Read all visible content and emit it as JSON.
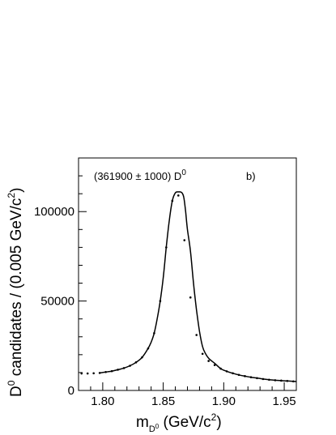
{
  "chart_data": {
    "type": "line",
    "annotation": {
      "count_text": "(361900 ± 1000) D",
      "count_sup": "0",
      "panel_label": "b)"
    },
    "xlabel": {
      "main": "m",
      "sub1": "D",
      "sub2": "0",
      "unit_pre": " (GeV/c",
      "unit_sup": "2",
      "unit_post": ")"
    },
    "ylabel": {
      "pre": "D",
      "sup1": "0",
      "mid": " candidates / (0.005 GeV/c",
      "sup2": "2",
      "post": ")"
    },
    "xlim": [
      1.78,
      1.96
    ],
    "ylim": [
      0,
      130000
    ],
    "x_ticks": [
      {
        "value": 1.8,
        "label": "1.80"
      },
      {
        "value": 1.85,
        "label": "1.85"
      },
      {
        "value": 1.9,
        "label": "1.90"
      },
      {
        "value": 1.95,
        "label": "1.95"
      }
    ],
    "y_ticks": [
      {
        "value": 0,
        "label": "0"
      },
      {
        "value": 50000,
        "label": "50000"
      },
      {
        "value": 100000,
        "label": "100000"
      }
    ],
    "series": [
      {
        "kind": "data-points",
        "x": [
          1.7825,
          1.7875,
          1.7925,
          1.7975,
          1.8025,
          1.8075,
          1.8125,
          1.8175,
          1.8225,
          1.8275,
          1.8325,
          1.8375,
          1.8425,
          1.8475,
          1.8525,
          1.8575,
          1.8625,
          1.8675,
          1.8725,
          1.8775,
          1.8825,
          1.8875,
          1.8925,
          1.8975,
          1.9025,
          1.9075,
          1.9125,
          1.9175,
          1.9225,
          1.9275,
          1.9325,
          1.9375,
          1.9425,
          1.9475,
          1.9525,
          1.9575
        ],
        "values": [
          9500,
          9500,
          9600,
          9800,
          10300,
          10800,
          11600,
          12500,
          13800,
          15700,
          18500,
          23500,
          32000,
          50000,
          80000,
          106000,
          109000,
          84000,
          52000,
          31000,
          20500,
          16500,
          14200,
          12200,
          10700,
          9600,
          8700,
          8000,
          7400,
          6900,
          6400,
          6000,
          5700,
          5500,
          5300,
          5100
        ]
      },
      {
        "kind": "fit-curve",
        "x": [
          1.7975,
          1.8025,
          1.8075,
          1.8125,
          1.8175,
          1.8225,
          1.8275,
          1.8325,
          1.8375,
          1.84,
          1.8425,
          1.845,
          1.8475,
          1.85,
          1.8525,
          1.855,
          1.8575,
          1.86,
          1.8625,
          1.864,
          1.8655,
          1.867,
          1.8685,
          1.87,
          1.8725,
          1.875,
          1.8775,
          1.88,
          1.8825,
          1.885,
          1.8875,
          1.89,
          1.8925,
          1.8975,
          1.9025,
          1.9075,
          1.9125,
          1.9175,
          1.9225,
          1.9275,
          1.9325,
          1.9375,
          1.9425,
          1.9475,
          1.9525,
          1.9575,
          1.96
        ],
        "values": [
          9800,
          10300,
          10800,
          11600,
          12500,
          13800,
          15700,
          18500,
          23500,
          27000,
          32000,
          40000,
          50000,
          63000,
          80000,
          95000,
          106000,
          110500,
          111000,
          111000,
          110500,
          108000,
          100000,
          90000,
          78000,
          60000,
          45000,
          33000,
          24500,
          20500,
          18000,
          16500,
          15200,
          12200,
          10700,
          9600,
          8700,
          8000,
          7400,
          6900,
          6400,
          6000,
          5700,
          5500,
          5300,
          5100,
          5000
        ]
      }
    ]
  }
}
